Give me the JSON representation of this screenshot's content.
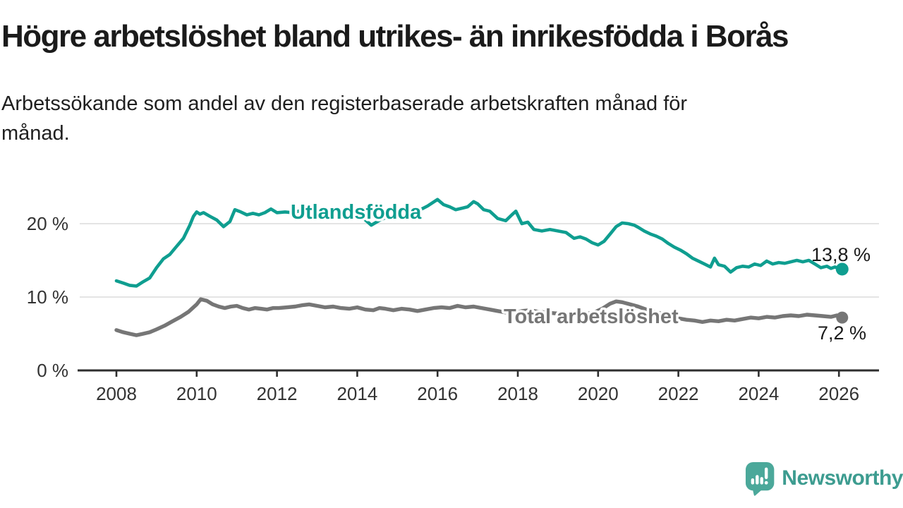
{
  "header": {
    "title": "Högre arbetslöshet bland utrikes- än inrikesfödda i Borås",
    "subtitle_lines": [
      "Arbetssökande som andel av den registerbaserade arbetskraften månad för",
      "månad."
    ]
  },
  "footer": {
    "brand": "Newsworthy"
  },
  "colors": {
    "accent_teal": "#0f9e90",
    "series_gray": "#767676",
    "axis": "#2e2e2e",
    "grid": "#dcdcdc",
    "tick_text": "#333333",
    "value_text": "#1a1a1a",
    "logo_mark": "#4ba89a",
    "logo_text": "#3d9c90"
  },
  "chart_data": {
    "type": "line",
    "title": "Högre arbetslöshet bland utrikes- än inrikesfödda i Borås",
    "subtitle": "Arbetssökande som andel av den registerbaserade arbetskraften månad för månad.",
    "xlabel": "",
    "ylabel": "",
    "unit": "%",
    "grid": "horizontal",
    "legend_position": "inline-labels",
    "x_axis": {
      "ticks": [
        2008,
        2010,
        2012,
        2014,
        2016,
        2018,
        2020,
        2022,
        2024,
        2026
      ],
      "range": [
        2007.0,
        2027.0
      ]
    },
    "y_axis": {
      "ticks": [
        {
          "value": 0,
          "label": "0 %"
        },
        {
          "value": 10,
          "label": "10 %"
        },
        {
          "value": 20,
          "label": "20 %"
        }
      ],
      "range": [
        0,
        24
      ]
    },
    "series": [
      {
        "name": "Utlandsfödda",
        "color": "#0f9e90",
        "end_value": 13.8,
        "end_label": "13,8 %",
        "points": [
          [
            2008.0,
            12.2
          ],
          [
            2008.17,
            11.9
          ],
          [
            2008.33,
            11.6
          ],
          [
            2008.5,
            11.5
          ],
          [
            2008.67,
            12.1
          ],
          [
            2008.83,
            12.6
          ],
          [
            2009.0,
            14.0
          ],
          [
            2009.17,
            15.2
          ],
          [
            2009.33,
            15.8
          ],
          [
            2009.5,
            16.9
          ],
          [
            2009.67,
            18.0
          ],
          [
            2009.83,
            19.8
          ],
          [
            2009.92,
            21.0
          ],
          [
            2010.0,
            21.6
          ],
          [
            2010.08,
            21.3
          ],
          [
            2010.17,
            21.5
          ],
          [
            2010.33,
            21.0
          ],
          [
            2010.5,
            20.5
          ],
          [
            2010.67,
            19.6
          ],
          [
            2010.83,
            20.3
          ],
          [
            2010.95,
            21.9
          ],
          [
            2011.1,
            21.6
          ],
          [
            2011.25,
            21.2
          ],
          [
            2011.4,
            21.4
          ],
          [
            2011.55,
            21.2
          ],
          [
            2011.7,
            21.5
          ],
          [
            2011.85,
            22.0
          ],
          [
            2012.0,
            21.5
          ],
          [
            2012.2,
            21.6
          ],
          [
            2012.4,
            21.5
          ],
          [
            2012.6,
            21.8
          ],
          [
            2012.75,
            22.1
          ],
          [
            2012.9,
            21.7
          ],
          [
            2013.1,
            21.5
          ],
          [
            2013.3,
            21.7
          ],
          [
            2013.5,
            21.4
          ],
          [
            2013.7,
            21.6
          ],
          [
            2013.9,
            21.4
          ],
          [
            2014.1,
            21.0
          ],
          [
            2014.35,
            19.8
          ],
          [
            2014.6,
            20.6
          ],
          [
            2014.8,
            21.0
          ],
          [
            2015.0,
            21.2
          ],
          [
            2015.25,
            21.4
          ],
          [
            2015.5,
            21.7
          ],
          [
            2015.75,
            22.4
          ],
          [
            2016.0,
            23.3
          ],
          [
            2016.15,
            22.6
          ],
          [
            2016.3,
            22.3
          ],
          [
            2016.45,
            21.9
          ],
          [
            2016.6,
            22.1
          ],
          [
            2016.75,
            22.3
          ],
          [
            2016.9,
            23.0
          ],
          [
            2017.0,
            22.7
          ],
          [
            2017.15,
            21.9
          ],
          [
            2017.3,
            21.7
          ],
          [
            2017.5,
            20.7
          ],
          [
            2017.7,
            20.4
          ],
          [
            2017.85,
            21.2
          ],
          [
            2017.95,
            21.7
          ],
          [
            2018.1,
            20.0
          ],
          [
            2018.25,
            20.2
          ],
          [
            2018.4,
            19.2
          ],
          [
            2018.6,
            19.0
          ],
          [
            2018.8,
            19.2
          ],
          [
            2019.0,
            19.0
          ],
          [
            2019.2,
            18.8
          ],
          [
            2019.4,
            18.0
          ],
          [
            2019.55,
            18.2
          ],
          [
            2019.7,
            17.9
          ],
          [
            2019.85,
            17.4
          ],
          [
            2020.0,
            17.1
          ],
          [
            2020.15,
            17.6
          ],
          [
            2020.3,
            18.6
          ],
          [
            2020.45,
            19.6
          ],
          [
            2020.6,
            20.1
          ],
          [
            2020.75,
            20.0
          ],
          [
            2020.9,
            19.8
          ],
          [
            2021.0,
            19.5
          ],
          [
            2021.15,
            19.0
          ],
          [
            2021.3,
            18.6
          ],
          [
            2021.45,
            18.3
          ],
          [
            2021.6,
            17.9
          ],
          [
            2021.75,
            17.3
          ],
          [
            2021.9,
            16.8
          ],
          [
            2022.05,
            16.4
          ],
          [
            2022.2,
            15.9
          ],
          [
            2022.35,
            15.3
          ],
          [
            2022.5,
            14.9
          ],
          [
            2022.65,
            14.5
          ],
          [
            2022.8,
            14.1
          ],
          [
            2022.9,
            15.3
          ],
          [
            2023.0,
            14.4
          ],
          [
            2023.15,
            14.2
          ],
          [
            2023.3,
            13.4
          ],
          [
            2023.45,
            14.0
          ],
          [
            2023.6,
            14.2
          ],
          [
            2023.75,
            14.1
          ],
          [
            2023.9,
            14.5
          ],
          [
            2024.05,
            14.3
          ],
          [
            2024.2,
            14.9
          ],
          [
            2024.35,
            14.5
          ],
          [
            2024.5,
            14.7
          ],
          [
            2024.65,
            14.6
          ],
          [
            2024.8,
            14.8
          ],
          [
            2024.95,
            15.0
          ],
          [
            2025.1,
            14.8
          ],
          [
            2025.25,
            15.0
          ],
          [
            2025.4,
            14.5
          ],
          [
            2025.55,
            14.0
          ],
          [
            2025.7,
            14.2
          ],
          [
            2025.8,
            13.9
          ],
          [
            2025.9,
            14.1
          ],
          [
            2026.0,
            13.9
          ],
          [
            2026.08,
            13.8
          ]
        ]
      },
      {
        "name": "Total arbetslöshet",
        "color": "#767676",
        "end_value": 7.2,
        "end_label": "7,2 %",
        "points": [
          [
            2008.0,
            5.5
          ],
          [
            2008.17,
            5.2
          ],
          [
            2008.33,
            5.0
          ],
          [
            2008.5,
            4.8
          ],
          [
            2008.67,
            5.0
          ],
          [
            2008.83,
            5.2
          ],
          [
            2009.0,
            5.6
          ],
          [
            2009.2,
            6.1
          ],
          [
            2009.4,
            6.7
          ],
          [
            2009.6,
            7.3
          ],
          [
            2009.8,
            8.0
          ],
          [
            2010.0,
            9.0
          ],
          [
            2010.1,
            9.7
          ],
          [
            2010.25,
            9.5
          ],
          [
            2010.4,
            9.0
          ],
          [
            2010.55,
            8.7
          ],
          [
            2010.7,
            8.5
          ],
          [
            2010.85,
            8.7
          ],
          [
            2011.0,
            8.8
          ],
          [
            2011.15,
            8.5
          ],
          [
            2011.3,
            8.3
          ],
          [
            2011.45,
            8.5
          ],
          [
            2011.6,
            8.4
          ],
          [
            2011.75,
            8.3
          ],
          [
            2011.9,
            8.5
          ],
          [
            2012.05,
            8.5
          ],
          [
            2012.25,
            8.6
          ],
          [
            2012.45,
            8.7
          ],
          [
            2012.65,
            8.9
          ],
          [
            2012.8,
            9.0
          ],
          [
            2013.0,
            8.8
          ],
          [
            2013.2,
            8.6
          ],
          [
            2013.4,
            8.7
          ],
          [
            2013.6,
            8.5
          ],
          [
            2013.8,
            8.4
          ],
          [
            2014.0,
            8.6
          ],
          [
            2014.2,
            8.3
          ],
          [
            2014.4,
            8.2
          ],
          [
            2014.55,
            8.5
          ],
          [
            2014.7,
            8.4
          ],
          [
            2014.9,
            8.2
          ],
          [
            2015.1,
            8.4
          ],
          [
            2015.3,
            8.3
          ],
          [
            2015.5,
            8.1
          ],
          [
            2015.7,
            8.3
          ],
          [
            2015.9,
            8.5
          ],
          [
            2016.1,
            8.6
          ],
          [
            2016.3,
            8.5
          ],
          [
            2016.5,
            8.8
          ],
          [
            2016.7,
            8.6
          ],
          [
            2016.9,
            8.7
          ],
          [
            2017.1,
            8.5
          ],
          [
            2017.3,
            8.3
          ],
          [
            2017.5,
            8.1
          ],
          [
            2017.7,
            7.9
          ],
          [
            2017.9,
            7.8
          ],
          [
            2018.1,
            8.1
          ],
          [
            2018.3,
            8.2
          ],
          [
            2018.5,
            8.0
          ],
          [
            2018.7,
            7.9
          ],
          [
            2018.9,
            7.8
          ],
          [
            2019.1,
            7.7
          ],
          [
            2019.3,
            7.6
          ],
          [
            2019.5,
            7.6
          ],
          [
            2019.7,
            7.7
          ],
          [
            2019.9,
            7.9
          ],
          [
            2020.1,
            8.4
          ],
          [
            2020.3,
            9.1
          ],
          [
            2020.45,
            9.4
          ],
          [
            2020.6,
            9.3
          ],
          [
            2020.8,
            9.0
          ],
          [
            2021.0,
            8.7
          ],
          [
            2021.2,
            8.3
          ],
          [
            2021.4,
            8.0
          ],
          [
            2021.6,
            7.7
          ],
          [
            2021.8,
            7.4
          ],
          [
            2022.0,
            7.1
          ],
          [
            2022.2,
            6.9
          ],
          [
            2022.4,
            6.8
          ],
          [
            2022.6,
            6.6
          ],
          [
            2022.8,
            6.8
          ],
          [
            2023.0,
            6.7
          ],
          [
            2023.2,
            6.9
          ],
          [
            2023.4,
            6.8
          ],
          [
            2023.6,
            7.0
          ],
          [
            2023.8,
            7.2
          ],
          [
            2024.0,
            7.1
          ],
          [
            2024.2,
            7.3
          ],
          [
            2024.4,
            7.2
          ],
          [
            2024.6,
            7.4
          ],
          [
            2024.8,
            7.5
          ],
          [
            2025.0,
            7.4
          ],
          [
            2025.2,
            7.6
          ],
          [
            2025.4,
            7.5
          ],
          [
            2025.6,
            7.4
          ],
          [
            2025.8,
            7.3
          ],
          [
            2025.95,
            7.5
          ],
          [
            2026.08,
            7.2
          ]
        ]
      }
    ]
  }
}
